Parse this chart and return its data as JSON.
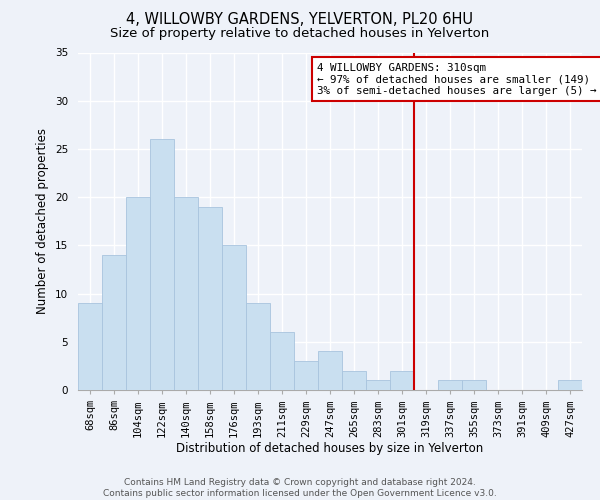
{
  "title": "4, WILLOWBY GARDENS, YELVERTON, PL20 6HU",
  "subtitle": "Size of property relative to detached houses in Yelverton",
  "xlabel": "Distribution of detached houses by size in Yelverton",
  "ylabel": "Number of detached properties",
  "bar_labels": [
    "68sqm",
    "86sqm",
    "104sqm",
    "122sqm",
    "140sqm",
    "158sqm",
    "176sqm",
    "193sqm",
    "211sqm",
    "229sqm",
    "247sqm",
    "265sqm",
    "283sqm",
    "301sqm",
    "319sqm",
    "337sqm",
    "355sqm",
    "373sqm",
    "391sqm",
    "409sqm",
    "427sqm"
  ],
  "bar_values": [
    9,
    14,
    20,
    26,
    20,
    19,
    15,
    9,
    6,
    3,
    4,
    2,
    1,
    2,
    0,
    1,
    1,
    0,
    0,
    0,
    1
  ],
  "bar_color": "#c9dff0",
  "bar_edge_color": "#a8c4de",
  "ylim": [
    0,
    35
  ],
  "yticks": [
    0,
    5,
    10,
    15,
    20,
    25,
    30,
    35
  ],
  "vline_x": 14.0,
  "vline_color": "#cc0000",
  "legend_title": "4 WILLOWBY GARDENS: 310sqm",
  "legend_line1": "← 97% of detached houses are smaller (149)",
  "legend_line2": "3% of semi-detached houses are larger (5) →",
  "footer1": "Contains HM Land Registry data © Crown copyright and database right 2024.",
  "footer2": "Contains public sector information licensed under the Open Government Licence v3.0.",
  "background_color": "#eef2f9",
  "grid_color": "#ffffff",
  "title_fontsize": 10.5,
  "subtitle_fontsize": 9.5,
  "label_fontsize": 8.5,
  "tick_fontsize": 7.5,
  "footer_fontsize": 6.5
}
